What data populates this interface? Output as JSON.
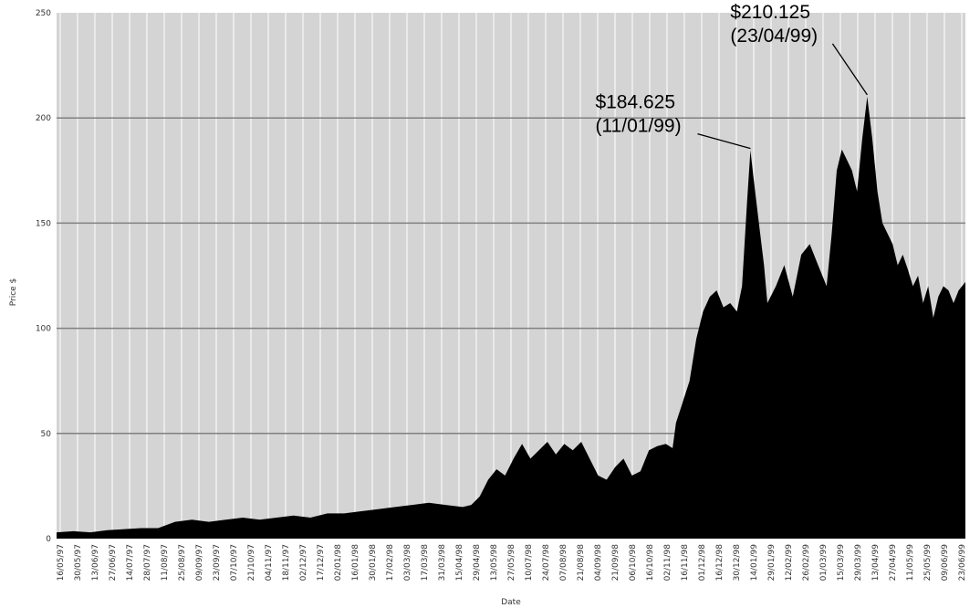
{
  "chart_data": {
    "type": "area",
    "xlabel": "Date",
    "ylabel": "Price $",
    "ylim": [
      0,
      250
    ],
    "yticks": [
      0,
      50,
      100,
      150,
      200,
      250
    ],
    "grid": true,
    "colors": {
      "plot_background": "#d4d4d4",
      "area": "#000000",
      "gridline": "#808080"
    },
    "date_tick_labels": [
      "16/05/97",
      "30/05/97",
      "13/06/97",
      "27/06/97",
      "14/07/97",
      "28/07/97",
      "11/08/97",
      "25/08/97",
      "09/09/97",
      "23/09/97",
      "07/10/97",
      "21/10/97",
      "04/11/97",
      "18/11/97",
      "02/12/97",
      "17/12/97",
      "02/01/98",
      "16/01/98",
      "30/01/98",
      "17/02/98",
      "03/03/98",
      "17/03/98",
      "31/03/98",
      "15/04/98",
      "29/04/98",
      "13/05/98",
      "27/05/98",
      "10/07/98",
      "24/07/98",
      "07/08/98",
      "21/08/98",
      "04/09/98",
      "21/09/98",
      "06/10/98",
      "16/10/98",
      "02/11/98",
      "16/11/98",
      "01/12/98",
      "16/12/98",
      "30/12/98",
      "14/01/99",
      "29/01/99",
      "12/02/99",
      "26/02/99",
      "01/03/99",
      "15/03/99",
      "29/03/99",
      "13/04/99",
      "27/04/99",
      "11/05/99",
      "25/05/99",
      "09/06/99",
      "23/06/99"
    ],
    "series": [
      {
        "values": [
          [
            0,
            3
          ],
          [
            10,
            3.5
          ],
          [
            20,
            3
          ],
          [
            30,
            4
          ],
          [
            40,
            4.5
          ],
          [
            50,
            5
          ],
          [
            60,
            5
          ],
          [
            70,
            8
          ],
          [
            80,
            9
          ],
          [
            90,
            8
          ],
          [
            100,
            9
          ],
          [
            110,
            10
          ],
          [
            120,
            9
          ],
          [
            130,
            10
          ],
          [
            140,
            11
          ],
          [
            150,
            10
          ],
          [
            160,
            12
          ],
          [
            170,
            12
          ],
          [
            180,
            13
          ],
          [
            190,
            14
          ],
          [
            200,
            15
          ],
          [
            210,
            16
          ],
          [
            220,
            17
          ],
          [
            230,
            16
          ],
          [
            240,
            15
          ],
          [
            245,
            16
          ],
          [
            250,
            20
          ],
          [
            255,
            28
          ],
          [
            260,
            33
          ],
          [
            265,
            30
          ],
          [
            270,
            38
          ],
          [
            275,
            45
          ],
          [
            280,
            38
          ],
          [
            285,
            42
          ],
          [
            290,
            46
          ],
          [
            295,
            40
          ],
          [
            300,
            45
          ],
          [
            305,
            42
          ],
          [
            310,
            46
          ],
          [
            315,
            38
          ],
          [
            320,
            30
          ],
          [
            325,
            28
          ],
          [
            330,
            34
          ],
          [
            335,
            38
          ],
          [
            340,
            30
          ],
          [
            345,
            32
          ],
          [
            350,
            42
          ],
          [
            355,
            44
          ],
          [
            360,
            45
          ],
          [
            364,
            43
          ],
          [
            366,
            55
          ],
          [
            370,
            65
          ],
          [
            374,
            75
          ],
          [
            378,
            95
          ],
          [
            382,
            108
          ],
          [
            386,
            115
          ],
          [
            390,
            118
          ],
          [
            394,
            110
          ],
          [
            398,
            112
          ],
          [
            402,
            108
          ],
          [
            405,
            120
          ],
          [
            408,
            160
          ],
          [
            410,
            184.625
          ],
          [
            412,
            170
          ],
          [
            415,
            150
          ],
          [
            418,
            130
          ],
          [
            420,
            112
          ],
          [
            425,
            120
          ],
          [
            430,
            130
          ],
          [
            435,
            115
          ],
          [
            440,
            135
          ],
          [
            445,
            140
          ],
          [
            450,
            130
          ],
          [
            455,
            120
          ],
          [
            458,
            145
          ],
          [
            461,
            175
          ],
          [
            464,
            185
          ],
          [
            467,
            180
          ],
          [
            470,
            175
          ],
          [
            473,
            165
          ],
          [
            476,
            190
          ],
          [
            479,
            210.125
          ],
          [
            482,
            190
          ],
          [
            485,
            165
          ],
          [
            488,
            150
          ],
          [
            491,
            145
          ],
          [
            494,
            140
          ],
          [
            497,
            130
          ],
          [
            500,
            135
          ],
          [
            503,
            128
          ],
          [
            506,
            120
          ],
          [
            509,
            125
          ],
          [
            512,
            112
          ],
          [
            515,
            120
          ],
          [
            518,
            105
          ],
          [
            521,
            115
          ],
          [
            524,
            120
          ],
          [
            527,
            118
          ],
          [
            530,
            112
          ],
          [
            533,
            118
          ],
          [
            537,
            122
          ]
        ]
      }
    ],
    "annotations": [
      {
        "price": "$184.625",
        "date": "(11/01/99)",
        "x": 410,
        "y": 184.625
      },
      {
        "price": "$210.125",
        "date": "(23/04/99)",
        "x": 479,
        "y": 210.125
      }
    ]
  }
}
